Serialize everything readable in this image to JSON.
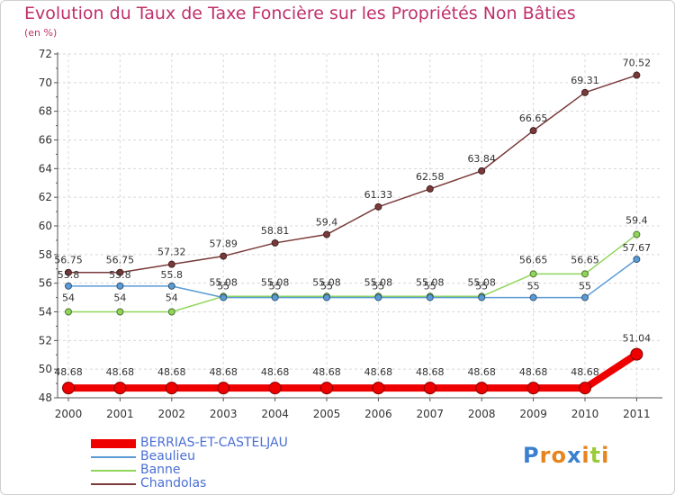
{
  "chart_data": {
    "type": "line",
    "title": "Evolution du Taux de Taxe Foncière sur les Propriétés Non Bâties",
    "unit_label": "(en %)",
    "categories": [
      "2000",
      "2001",
      "2002",
      "2003",
      "2004",
      "2005",
      "2006",
      "2007",
      "2008",
      "2009",
      "2010",
      "2011"
    ],
    "ylim": [
      48,
      72
    ],
    "yticks": [
      48,
      50,
      52,
      54,
      56,
      58,
      60,
      62,
      64,
      66,
      68,
      70,
      72
    ],
    "grid": true,
    "legend_position": "bottom-left",
    "series": [
      {
        "name": "BERRIAS-ET-CASTELJAU",
        "color": "#ee0000",
        "values": [
          48.68,
          48.68,
          48.68,
          48.68,
          48.68,
          48.68,
          48.68,
          48.68,
          48.68,
          48.68,
          48.68,
          51.04
        ],
        "labels": [
          "48.68",
          "48.68",
          "48.68",
          "48.68",
          "48.68",
          "48.68",
          "48.68",
          "48.68",
          "48.68",
          "48.68",
          "48.68",
          "51.04"
        ]
      },
      {
        "name": "Beaulieu",
        "color": "#5b9bd5",
        "values": [
          55.8,
          55.8,
          55.8,
          55,
          55,
          55,
          55,
          55,
          55,
          55,
          55,
          57.67
        ],
        "labels": [
          "55.8",
          "55.8",
          "55.8",
          "55",
          "55",
          "55",
          "55",
          "55",
          "55",
          "55",
          "55",
          "57.67"
        ]
      },
      {
        "name": "Banne",
        "color": "#8fd65a",
        "values": [
          54,
          54,
          54,
          55.08,
          55.08,
          55.08,
          55.08,
          55.08,
          55.08,
          56.65,
          56.65,
          59.4
        ],
        "labels": [
          "54",
          "54",
          "54",
          "55.08",
          "55.08",
          "55.08",
          "55.08",
          "55.08",
          "55.08",
          "56.65",
          "56.65",
          "59.4"
        ]
      },
      {
        "name": "Chandolas",
        "color": "#7a3a3a",
        "values": [
          56.75,
          56.75,
          57.32,
          57.89,
          58.81,
          59.4,
          61.33,
          62.58,
          63.84,
          66.65,
          69.31,
          70.52
        ],
        "labels": [
          "56.75",
          "56.75",
          "57.32",
          "57.89",
          "58.81",
          "59.4",
          "61.33",
          "62.58",
          "63.84",
          "66.65",
          "69.31",
          "70.52"
        ]
      }
    ]
  },
  "branding": {
    "logo_letters": [
      "P",
      "r",
      "o",
      "x",
      "i",
      "t",
      "i"
    ],
    "logo_colors": [
      "#3a7fd0",
      "#e6841e",
      "#e6841e",
      "#3a7fd0",
      "#e6841e",
      "#9ccc3c",
      "#e6841e"
    ]
  }
}
